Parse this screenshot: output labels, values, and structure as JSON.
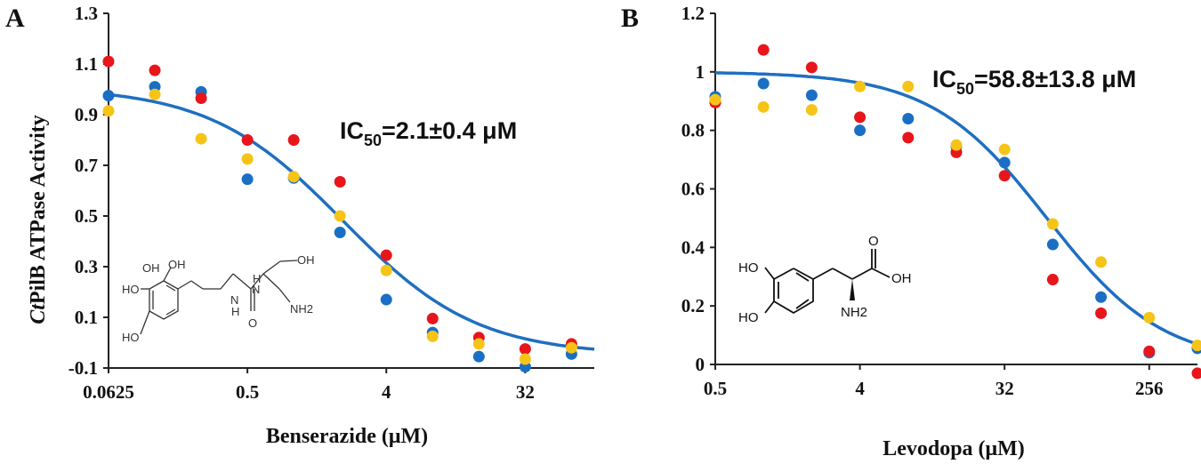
{
  "chart_data": [
    {
      "type": "scatter",
      "panel": "A",
      "xlabel": "Benserazide (μM)",
      "ylabel": "CtPilB ATPase Activity",
      "ylabel_italic": "Ct",
      "ylabel_rest": "PilB ATPase Activity",
      "x_scale": "log2",
      "xlim": [
        0.0625,
        90
      ],
      "ylim": [
        -0.1,
        1.3
      ],
      "x_ticks": [
        0.0625,
        0.5,
        4,
        32
      ],
      "x_tick_labels": [
        "0.0625",
        "0.5",
        "4",
        "32"
      ],
      "y_ticks": [
        -0.1,
        0.1,
        0.3,
        0.5,
        0.7,
        0.9,
        1.1,
        1.3
      ],
      "y_tick_labels": [
        "-0.1",
        "0.1",
        "0.3",
        "0.5",
        "0.7",
        "0.9",
        "1.1",
        "1.3"
      ],
      "annotation": {
        "prefix": "IC",
        "sub": "50",
        "suffix": "=2.1±0.4 μM"
      },
      "fit": {
        "model": "four-parameter logistic",
        "top": 1.01,
        "bottom": -0.05,
        "ic50": 2.1,
        "hill": 1.0
      },
      "series": [
        {
          "color": "#1a6fc4",
          "x": [
            0.0625,
            0.125,
            0.25,
            0.5,
            1,
            2,
            4,
            8,
            16,
            32,
            64
          ],
          "y": [
            0.975,
            1.01,
            0.99,
            0.645,
            0.65,
            0.435,
            0.17,
            0.04,
            -0.055,
            -0.095,
            -0.045
          ]
        },
        {
          "color": "#e8151b",
          "x": [
            0.0625,
            0.125,
            0.25,
            0.5,
            1,
            2,
            4,
            8,
            16,
            32,
            64
          ],
          "y": [
            1.11,
            1.075,
            0.965,
            0.8,
            0.8,
            0.635,
            0.345,
            0.095,
            0.02,
            -0.025,
            -0.005
          ]
        },
        {
          "color": "#f6c417",
          "x": [
            0.0625,
            0.125,
            0.25,
            0.5,
            1,
            2,
            4,
            8,
            16,
            32,
            64
          ],
          "y": [
            0.915,
            0.98,
            0.805,
            0.725,
            0.655,
            0.5,
            0.285,
            0.025,
            -0.005,
            -0.065,
            -0.02
          ]
        }
      ],
      "structure_labels": [
        "OH",
        "HO",
        "OH",
        "HO",
        "N",
        "H",
        "N",
        "H",
        "O",
        "NH2"
      ]
    },
    {
      "type": "scatter",
      "panel": "B",
      "xlabel": "Levodopa (μM)",
      "x_scale": "log2",
      "xlim": [
        0.5,
        512
      ],
      "ylim": [
        0,
        1.2
      ],
      "x_ticks": [
        0.5,
        4,
        32,
        256
      ],
      "x_tick_labels": [
        "0.5",
        "4",
        "32",
        "256"
      ],
      "y_ticks": [
        0,
        0.2,
        0.4,
        0.6,
        0.8,
        1,
        1.2
      ],
      "y_tick_labels": [
        "0",
        "0.2",
        "0.4",
        "0.6",
        "0.8",
        "1",
        "1.2"
      ],
      "annotation": {
        "prefix": "IC",
        "sub": "50",
        "suffix": "=58.8±13.8 μM"
      },
      "fit": {
        "model": "four-parameter logistic",
        "top": 1.0,
        "bottom": 0.0,
        "ic50": 58.8,
        "hill": 1.2
      },
      "series": [
        {
          "color": "#1a6fc4",
          "x": [
            0.5,
            1,
            2,
            4,
            8,
            16,
            32,
            64,
            128,
            256,
            512
          ],
          "y": [
            0.915,
            0.96,
            0.92,
            0.8,
            0.84,
            0.745,
            0.69,
            0.41,
            0.23,
            0.04,
            0.055
          ]
        },
        {
          "color": "#e8151b",
          "x": [
            0.5,
            1,
            2,
            4,
            8,
            16,
            32,
            64,
            128,
            256,
            512
          ],
          "y": [
            0.895,
            1.075,
            1.015,
            0.845,
            0.775,
            0.725,
            0.645,
            0.29,
            0.175,
            0.045,
            -0.03
          ]
        },
        {
          "color": "#f6c417",
          "x": [
            0.5,
            1,
            2,
            4,
            8,
            16,
            32,
            64,
            128,
            256,
            512
          ],
          "y": [
            0.905,
            0.88,
            0.87,
            0.95,
            0.95,
            0.75,
            0.735,
            0.48,
            0.35,
            0.16,
            0.065
          ]
        }
      ],
      "structure_labels": [
        "HO",
        "HO",
        "O",
        "OH",
        "NH2"
      ]
    }
  ]
}
